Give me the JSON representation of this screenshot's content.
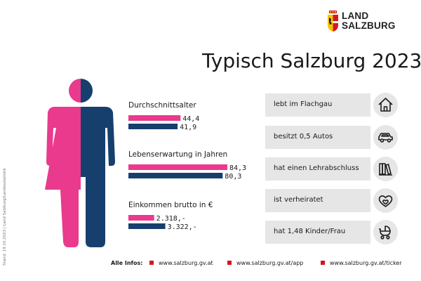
{
  "side_note": "Stand: 19.10.2023 | Land Salzburg/Landesstatistik",
  "logo": {
    "line1": "LAND",
    "line2": "SALZBURG"
  },
  "title": "Typisch Salzburg 2023",
  "colors": {
    "female": "#e93a8d",
    "male": "#173f6d",
    "accent": "#d3181f",
    "box": "#e6e6e6"
  },
  "chart_data": [
    {
      "type": "bar",
      "title": "Durchschnittsalter",
      "series": [
        {
          "name": "Frauen",
          "value": 44.4,
          "label": "44,4"
        },
        {
          "name": "Männer",
          "value": 41.9,
          "label": "41,9"
        }
      ],
      "ylim": [
        0,
        84.3
      ]
    },
    {
      "type": "bar",
      "title": "Lebenserwartung in Jahren",
      "series": [
        {
          "name": "Frauen",
          "value": 84.3,
          "label": "84,3"
        },
        {
          "name": "Männer",
          "value": 80.3,
          "label": "80,3"
        }
      ],
      "ylim": [
        0,
        84.3
      ]
    },
    {
      "type": "bar",
      "title": "Einkommen brutto in €",
      "series": [
        {
          "name": "Frauen",
          "value": 2318,
          "label": "2.318,-"
        },
        {
          "name": "Männer",
          "value": 3322,
          "label": "3.322,-"
        }
      ],
      "ylim": [
        0,
        8910
      ]
    }
  ],
  "facts": [
    {
      "text": "lebt im Flachgau",
      "icon": "house-icon"
    },
    {
      "text": "besitzt 0,5 Autos",
      "icon": "car-icon"
    },
    {
      "text": "hat einen Lehrabschluss",
      "icon": "books-icon"
    },
    {
      "text": "ist verheiratet",
      "icon": "hearts-icon"
    },
    {
      "text": "hat 1,48 Kinder/Frau",
      "icon": "stroller-icon"
    }
  ],
  "footer": {
    "label": "Alle Infos:",
    "links": [
      "www.salzburg.gv.at",
      "www.salzburg.gv.at/app",
      "www.salzburg.gv.at/ticker"
    ]
  }
}
